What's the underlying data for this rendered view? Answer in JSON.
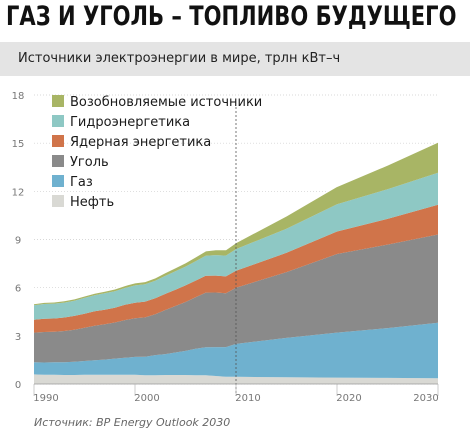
{
  "header": {
    "title": "ГАЗ И УГОЛЬ – ТОПЛИВО БУДУЩЕГО",
    "subtitle": "Источники электроэнергии в мире, трлн кВт–ч",
    "source": "Источник: BP Energy Outlook 2030"
  },
  "chart_data": {
    "type": "area",
    "stacked": true,
    "x": [
      1990,
      1991,
      1992,
      1993,
      1994,
      1995,
      1996,
      1997,
      1998,
      1999,
      2000,
      2001,
      2002,
      2003,
      2004,
      2005,
      2006,
      2007,
      2008,
      2009,
      2010,
      2015,
      2020,
      2025,
      2030
    ],
    "x_ticks": [
      "1990",
      "2000",
      "2010",
      "2020",
      "2030"
    ],
    "y_ticks": [
      "0",
      "3",
      "6",
      "9",
      "12",
      "15",
      "18"
    ],
    "ylim": [
      0,
      18
    ],
    "xlim": [
      1990,
      2030
    ],
    "forecast_divider_x": 2010,
    "series": [
      {
        "name": "Нефть",
        "color": "#d9d9d4",
        "values": [
          0.6,
          0.58,
          0.57,
          0.56,
          0.56,
          0.57,
          0.58,
          0.57,
          0.58,
          0.57,
          0.57,
          0.55,
          0.55,
          0.56,
          0.56,
          0.56,
          0.55,
          0.54,
          0.5,
          0.45,
          0.45,
          0.42,
          0.4,
          0.38,
          0.36
        ]
      },
      {
        "name": "Газ",
        "color": "#6fb1cf",
        "values": [
          0.75,
          0.76,
          0.78,
          0.79,
          0.82,
          0.86,
          0.9,
          0.95,
          1.0,
          1.06,
          1.12,
          1.15,
          1.25,
          1.3,
          1.4,
          1.5,
          1.65,
          1.75,
          1.8,
          1.85,
          2.05,
          2.45,
          2.8,
          3.1,
          3.45
        ]
      },
      {
        "name": "Уголь",
        "color": "#8a8a8a",
        "values": [
          1.85,
          1.9,
          1.9,
          1.95,
          2.0,
          2.07,
          2.15,
          2.2,
          2.25,
          2.35,
          2.4,
          2.45,
          2.55,
          2.75,
          2.9,
          3.05,
          3.2,
          3.4,
          3.4,
          3.35,
          3.5,
          4.1,
          4.9,
          5.2,
          5.5
        ]
      },
      {
        "name": "Ядерная энергетика",
        "color": "#d0744a",
        "values": [
          0.8,
          0.82,
          0.83,
          0.84,
          0.86,
          0.88,
          0.9,
          0.91,
          0.92,
          0.95,
          0.97,
          0.98,
          0.99,
          1.0,
          1.01,
          1.03,
          1.04,
          1.05,
          1.05,
          1.05,
          1.05,
          1.2,
          1.4,
          1.6,
          1.85
        ]
      },
      {
        "name": "Гидроэнергетика",
        "color": "#8ec8c4",
        "values": [
          0.9,
          0.92,
          0.93,
          0.93,
          0.95,
          0.98,
          1.0,
          1.02,
          1.03,
          1.05,
          1.08,
          1.08,
          1.09,
          1.12,
          1.15,
          1.17,
          1.2,
          1.25,
          1.28,
          1.3,
          1.35,
          1.5,
          1.7,
          1.85,
          2.0
        ]
      },
      {
        "name": "Возобновляемые источники",
        "color": "#a8b565",
        "values": [
          0.1,
          0.1,
          0.1,
          0.11,
          0.11,
          0.12,
          0.12,
          0.13,
          0.14,
          0.15,
          0.16,
          0.17,
          0.18,
          0.2,
          0.22,
          0.24,
          0.27,
          0.3,
          0.33,
          0.36,
          0.4,
          0.8,
          1.1,
          1.5,
          1.9
        ]
      }
    ],
    "legend_order": [
      "Возобновляемые источники",
      "Гидроэнергетика",
      "Ядерная энергетика",
      "Уголь",
      "Газ",
      "Нефть"
    ],
    "legend_position": "top-left",
    "grid": true
  }
}
